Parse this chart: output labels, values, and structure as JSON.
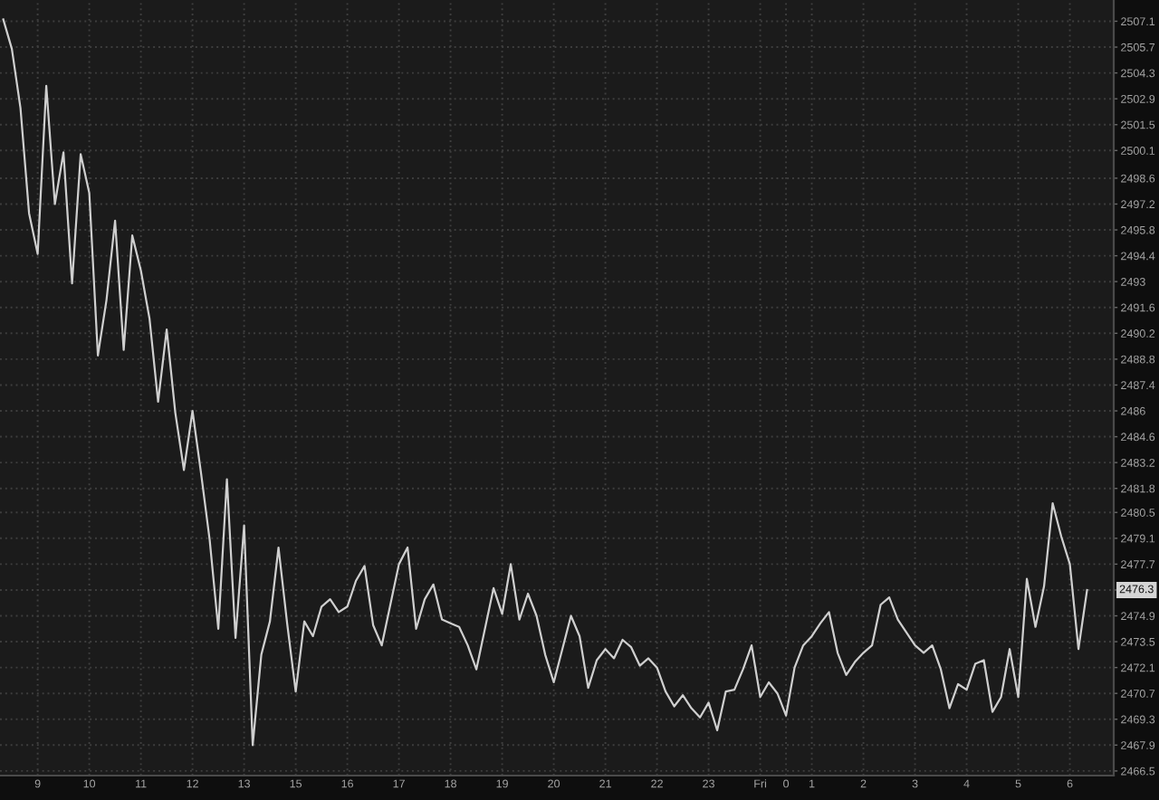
{
  "chart_data": {
    "type": "line",
    "categories": [
      null,
      null,
      null,
      null,
      "9",
      null,
      null,
      null,
      null,
      null,
      "10",
      null,
      null,
      null,
      null,
      null,
      "11",
      null,
      null,
      null,
      null,
      null,
      "12",
      null,
      null,
      null,
      null,
      null,
      "13",
      null,
      null,
      null,
      null,
      null,
      "15",
      null,
      null,
      null,
      null,
      null,
      "16",
      null,
      null,
      null,
      null,
      null,
      "17",
      null,
      null,
      null,
      null,
      null,
      "18",
      null,
      null,
      null,
      null,
      null,
      "19",
      null,
      null,
      null,
      null,
      null,
      "20",
      null,
      null,
      null,
      null,
      null,
      "21",
      null,
      null,
      null,
      null,
      null,
      "22",
      null,
      null,
      null,
      null,
      null,
      "23",
      null,
      null,
      null,
      null,
      null,
      "Fri",
      null,
      null,
      "0",
      null,
      null,
      "1",
      null,
      null,
      null,
      null,
      null,
      "2",
      null,
      null,
      null,
      null,
      null,
      "3",
      null,
      null,
      null,
      null,
      null,
      "4",
      null,
      null,
      null,
      null,
      null,
      "5",
      null,
      null,
      null,
      null,
      null,
      "6",
      null,
      null
    ],
    "series": [
      {
        "color": "#cfcfcf",
        "values": [
          2507.2,
          2505.6,
          2502.4,
          2496.7,
          2494.5,
          2503.6,
          2497.2,
          2500.0,
          2492.9,
          2499.9,
          2497.8,
          2489.0,
          2492.0,
          2496.3,
          2489.3,
          2495.5,
          2493.6,
          2491.0,
          2486.5,
          2490.4,
          2485.9,
          2482.8,
          2486.0,
          2482.6,
          2479.0,
          2474.2,
          2482.3,
          2473.7,
          2479.8,
          2467.9,
          2472.8,
          2474.6,
          2478.6,
          2474.5,
          2470.8,
          2474.6,
          2473.8,
          2475.4,
          2475.8,
          2475.1,
          2475.4,
          2476.8,
          2477.6,
          2474.4,
          2473.3,
          2475.5,
          2477.7,
          2478.6,
          2474.2,
          2475.8,
          2476.6,
          2474.7,
          2474.5,
          2474.3,
          2473.3,
          2472.0,
          2474.2,
          2476.4,
          2475.0,
          2477.7,
          2474.7,
          2476.1,
          2474.9,
          2472.8,
          2471.3,
          2473.1,
          2474.9,
          2473.8,
          2471.0,
          2472.5,
          2473.1,
          2472.6,
          2473.6,
          2473.2,
          2472.2,
          2472.6,
          2472.1,
          2470.8,
          2470.0,
          2470.6,
          2469.9,
          2469.4,
          2470.2,
          2468.7,
          2470.8,
          2470.9,
          2472.0,
          2473.3,
          2470.5,
          2471.3,
          2470.7,
          2469.5,
          2472.1,
          2473.3,
          2473.8,
          2474.5,
          2475.1,
          2472.9,
          2471.7,
          2472.4,
          2472.9,
          2473.3,
          2475.5,
          2475.9,
          2474.7,
          2474.0,
          2473.3,
          2472.9,
          2473.3,
          2472.0,
          2469.9,
          2471.2,
          2470.9,
          2472.3,
          2472.5,
          2469.7,
          2470.5,
          2473.1,
          2470.5,
          2476.9,
          2474.3,
          2476.5,
          2481.0,
          2479.2,
          2477.7,
          2473.1,
          2476.3
        ]
      }
    ],
    "ylim": [
      2466.25,
      2508.25
    ],
    "yticks": [
      2466.5,
      2467.9,
      2469.3,
      2470.7,
      2472.1,
      2473.5,
      2474.9,
      {
        "value": 2476.3,
        "label": null
      },
      2477.7,
      2479.1,
      2480.5,
      2481.8,
      2483.2,
      2484.6,
      2486,
      2487.4,
      2488.8,
      2490.2,
      2491.6,
      2493,
      2494.4,
      2495.8,
      2497.2,
      2498.6,
      2500.1,
      2501.5,
      2502.9,
      2504.3,
      2505.7,
      2507.1
    ],
    "grid": true,
    "line_style": "solid",
    "annotations": [
      "2476.3"
    ]
  }
}
